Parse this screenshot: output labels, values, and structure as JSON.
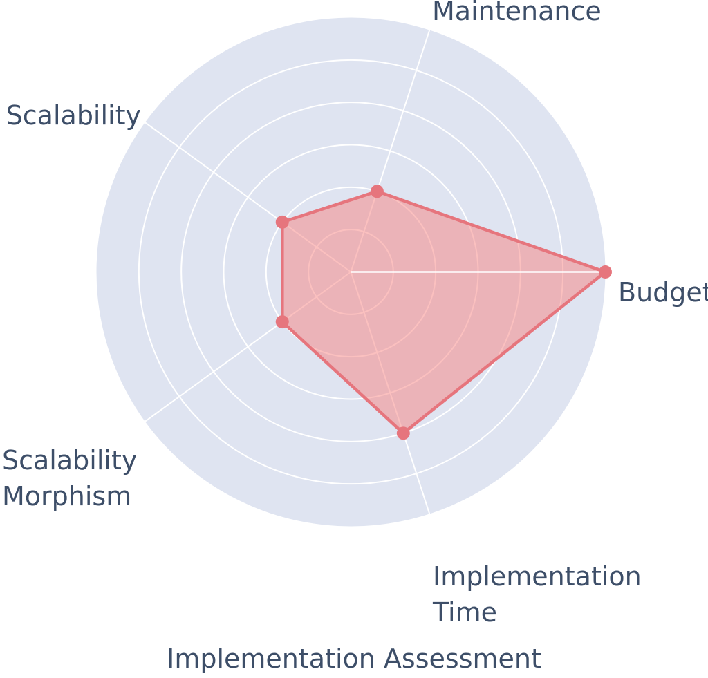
{
  "chart_data": {
    "type": "radar",
    "title": "Implementation Assessment",
    "axes": [
      {
        "label": "Budget",
        "angle_deg": 0,
        "value": 6
      },
      {
        "label": "Maintenance",
        "angle_deg": 72,
        "value": 2
      },
      {
        "label": "Scalability",
        "angle_deg": 144,
        "value": 2
      },
      {
        "label": "Scalability Morphism",
        "angle_deg": 216,
        "value": 2
      },
      {
        "label": "Implementation Time",
        "angle_deg": 288,
        "value": 4
      }
    ],
    "r_axis": {
      "min": 0,
      "max": 6,
      "ring_values": [
        1,
        2,
        3,
        4,
        5
      ],
      "ticks_visible": false
    },
    "grid": "circular",
    "legend": "none",
    "series_count": 1,
    "colors": {
      "page_background": "#ffffff",
      "polar_disc": "#dfe4f1",
      "grid_line": "#ffffff",
      "series_stroke": "#e6757d",
      "series_fill": "rgba(247,130,127,0.5)",
      "label_text": "#3d4e68"
    }
  }
}
